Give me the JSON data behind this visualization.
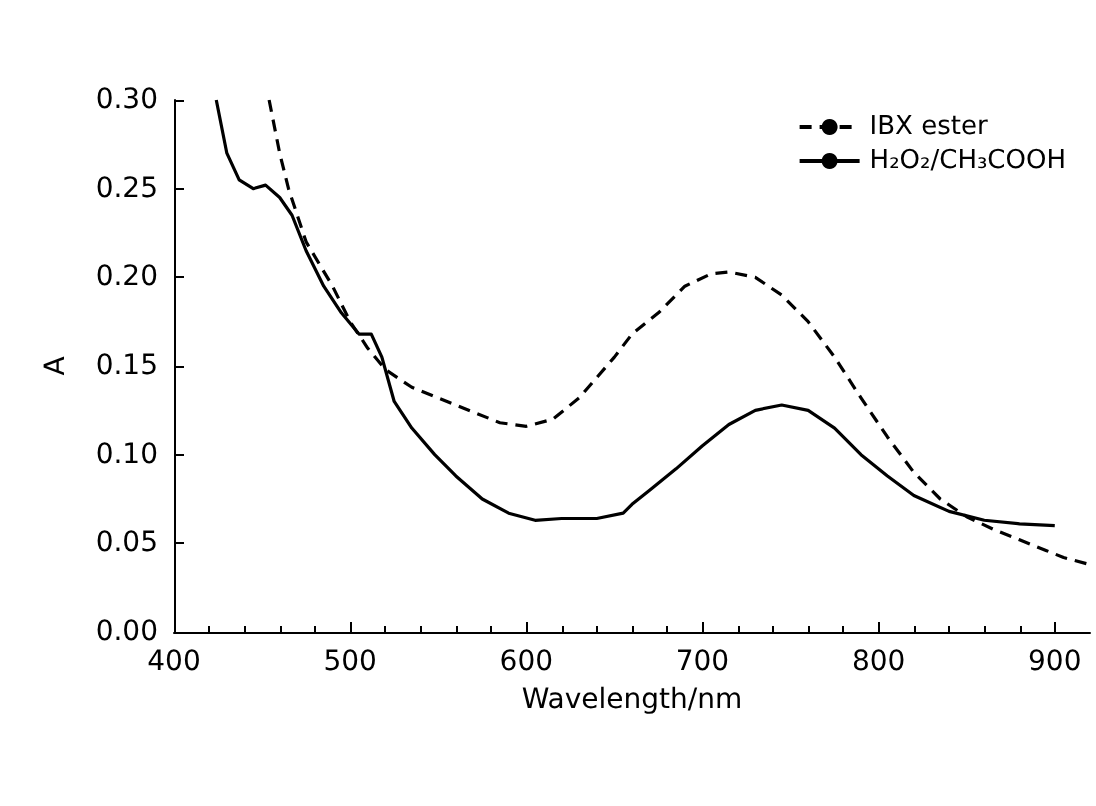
{
  "chart_data": {
    "type": "line",
    "xlabel": "Wavelength/nm",
    "ylabel": "A",
    "xlim": [
      400,
      920
    ],
    "xticks": [
      400,
      500,
      600,
      700,
      800,
      900
    ],
    "ylim": [
      0,
      0.3
    ],
    "yticks": [
      {
        "value": 0,
        "label": "0.00"
      },
      {
        "value": 0.05,
        "label": "0.05"
      },
      {
        "value": 0.1,
        "label": "0.10"
      },
      {
        "value": 0.15,
        "label": "0.15"
      },
      {
        "value": 0.2,
        "label": "0.20"
      },
      {
        "value": 0.25,
        "label": "0.25"
      },
      {
        "value": 0.3,
        "label": "0.30"
      }
    ],
    "grid": false,
    "legend": "top right",
    "marker": "none",
    "series": [
      {
        "name": "IBX ester",
        "color": "#000000",
        "line_style": "dashed",
        "x": [
          454,
          460,
          465,
          475,
          490,
          500,
          510,
          520,
          535,
          560,
          585,
          600,
          615,
          630,
          650,
          660,
          675,
          690,
          705,
          715,
          730,
          745,
          760,
          775,
          790,
          805,
          820,
          835,
          850,
          865,
          880,
          895,
          905,
          920
        ],
        "values": [
          0.3,
          0.27,
          0.25,
          0.22,
          0.195,
          0.175,
          0.16,
          0.148,
          0.138,
          0.128,
          0.118,
          0.116,
          0.12,
          0.132,
          0.155,
          0.168,
          0.18,
          0.195,
          0.202,
          0.203,
          0.2,
          0.19,
          0.175,
          0.155,
          0.132,
          0.11,
          0.09,
          0.075,
          0.065,
          0.058,
          0.052,
          0.046,
          0.042,
          0.038
        ]
      },
      {
        "name": "H₂O₂/CH₃COOH",
        "color": "#000000",
        "line_style": "solid",
        "x": [
          424,
          430,
          437,
          445,
          452,
          460,
          467,
          475,
          485,
          495,
          505,
          512,
          518,
          525,
          535,
          548,
          560,
          575,
          590,
          605,
          620,
          640,
          655,
          660,
          670,
          685,
          700,
          715,
          730,
          745,
          760,
          775,
          790,
          805,
          820,
          840,
          860,
          880,
          900
        ],
        "values": [
          0.3,
          0.27,
          0.255,
          0.25,
          0.252,
          0.245,
          0.235,
          0.215,
          0.195,
          0.18,
          0.168,
          0.168,
          0.155,
          0.13,
          0.115,
          0.1,
          0.088,
          0.075,
          0.067,
          0.063,
          0.064,
          0.064,
          0.067,
          0.072,
          0.08,
          0.092,
          0.105,
          0.117,
          0.125,
          0.128,
          0.125,
          0.115,
          0.1,
          0.088,
          0.077,
          0.068,
          0.063,
          0.061,
          0.06
        ]
      }
    ]
  }
}
